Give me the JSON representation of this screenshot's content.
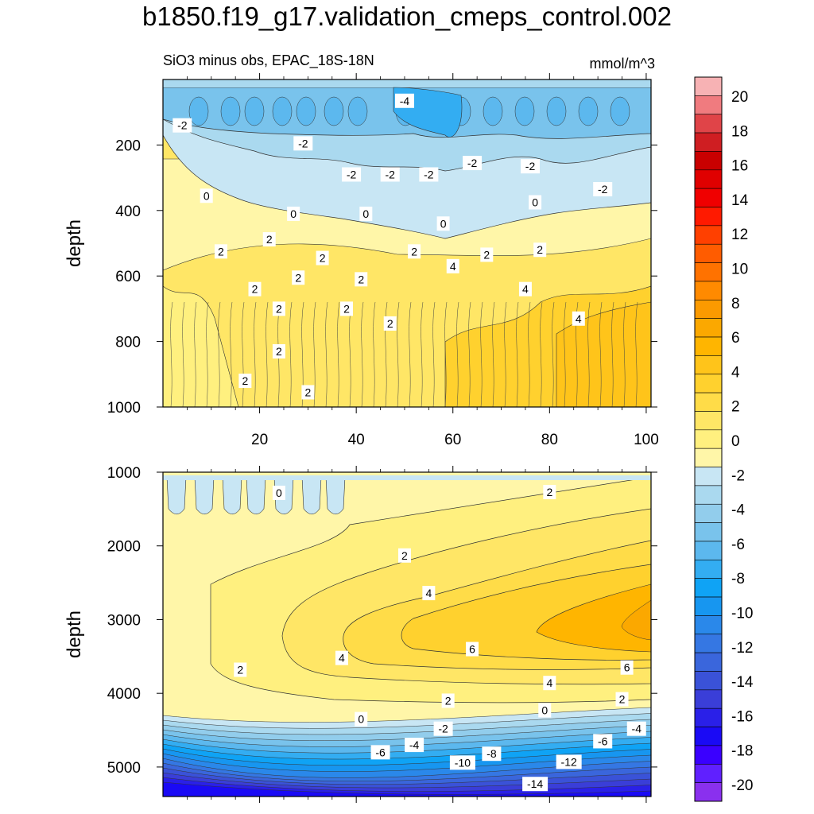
{
  "title": "b1850.f19_g17.validation_cmeps_control.002",
  "subtitle_left": "SiO3 minus obs, EPAC_18S-18N",
  "subtitle_right": "mmol/m^3",
  "chart_data": [
    {
      "type": "heatmap",
      "panel": "upper",
      "ylabel": "depth",
      "xlabel": "",
      "xlim": [
        0,
        101
      ],
      "ylim": [
        1000,
        0
      ],
      "x_ticks": [
        20,
        40,
        60,
        80,
        100
      ],
      "y_ticks": [
        200,
        400,
        600,
        800,
        1000
      ],
      "contour_labels": [
        {
          "x": 50,
          "y": 65,
          "text": "-4"
        },
        {
          "x": 4,
          "y": 140,
          "text": "-2"
        },
        {
          "x": 29,
          "y": 195,
          "text": "-2"
        },
        {
          "x": 39,
          "y": 290,
          "text": "-2"
        },
        {
          "x": 47,
          "y": 290,
          "text": "-2"
        },
        {
          "x": 55,
          "y": 290,
          "text": "-2"
        },
        {
          "x": 64,
          "y": 255,
          "text": "-2"
        },
        {
          "x": 76,
          "y": 265,
          "text": "-2"
        },
        {
          "x": 91,
          "y": 335,
          "text": "-2"
        },
        {
          "x": 9,
          "y": 355,
          "text": "0"
        },
        {
          "x": 27,
          "y": 410,
          "text": "0"
        },
        {
          "x": 42,
          "y": 410,
          "text": "0"
        },
        {
          "x": 58,
          "y": 440,
          "text": "0"
        },
        {
          "x": 77,
          "y": 375,
          "text": "0"
        },
        {
          "x": 22,
          "y": 488,
          "text": "2"
        },
        {
          "x": 12,
          "y": 525,
          "text": "2"
        },
        {
          "x": 33,
          "y": 545,
          "text": "2"
        },
        {
          "x": 52,
          "y": 525,
          "text": "2"
        },
        {
          "x": 67,
          "y": 535,
          "text": "2"
        },
        {
          "x": 78,
          "y": 520,
          "text": "2"
        },
        {
          "x": 28,
          "y": 605,
          "text": "2"
        },
        {
          "x": 41,
          "y": 610,
          "text": "2"
        },
        {
          "x": 19,
          "y": 640,
          "text": "2"
        },
        {
          "x": 60,
          "y": 570,
          "text": "4"
        },
        {
          "x": 75,
          "y": 640,
          "text": "4"
        },
        {
          "x": 24,
          "y": 700,
          "text": "2"
        },
        {
          "x": 38,
          "y": 700,
          "text": "2"
        },
        {
          "x": 47,
          "y": 745,
          "text": "2"
        },
        {
          "x": 86,
          "y": 730,
          "text": "4"
        },
        {
          "x": 24,
          "y": 830,
          "text": "2"
        },
        {
          "x": 17,
          "y": 920,
          "text": "2"
        },
        {
          "x": 30,
          "y": 955,
          "text": "2"
        }
      ]
    },
    {
      "type": "heatmap",
      "panel": "lower",
      "ylabel": "depth",
      "xlabel": "",
      "xlim": [
        0,
        101
      ],
      "ylim": [
        5400,
        1000
      ],
      "x_ticks": [
        20,
        40,
        60,
        80,
        100
      ],
      "y_ticks": [
        1000,
        2000,
        3000,
        4000,
        5000
      ],
      "contour_labels": [
        {
          "x": 24,
          "y": 1280,
          "text": "0"
        },
        {
          "x": 80,
          "y": 1270,
          "text": "2"
        },
        {
          "x": 50,
          "y": 2130,
          "text": "2"
        },
        {
          "x": 55,
          "y": 2640,
          "text": "4"
        },
        {
          "x": 16,
          "y": 3680,
          "text": "2"
        },
        {
          "x": 37,
          "y": 3520,
          "text": "4"
        },
        {
          "x": 64,
          "y": 3400,
          "text": "6"
        },
        {
          "x": 96,
          "y": 3650,
          "text": "6"
        },
        {
          "x": 80,
          "y": 3860,
          "text": "4"
        },
        {
          "x": 59,
          "y": 4100,
          "text": "2"
        },
        {
          "x": 95,
          "y": 4080,
          "text": "2"
        },
        {
          "x": 79,
          "y": 4230,
          "text": "0"
        },
        {
          "x": 41,
          "y": 4350,
          "text": "0"
        },
        {
          "x": 58,
          "y": 4480,
          "text": "-2"
        },
        {
          "x": 98,
          "y": 4480,
          "text": "-4"
        },
        {
          "x": 52,
          "y": 4700,
          "text": "-4"
        },
        {
          "x": 45,
          "y": 4800,
          "text": "-6"
        },
        {
          "x": 91,
          "y": 4650,
          "text": "-6"
        },
        {
          "x": 68,
          "y": 4820,
          "text": "-8"
        },
        {
          "x": 62,
          "y": 4940,
          "text": "-10"
        },
        {
          "x": 84,
          "y": 4930,
          "text": "-12"
        },
        {
          "x": 77,
          "y": 5230,
          "text": "-14"
        }
      ]
    }
  ],
  "colorbar": {
    "levels": [
      20,
      18,
      16,
      14,
      12,
      10,
      8,
      6,
      4,
      2,
      0,
      -2,
      -4,
      -6,
      -8,
      -10,
      -12,
      -14,
      -16,
      -18,
      -20
    ],
    "colors": [
      "#f7b2b4",
      "#f07b7f",
      "#e04448",
      "#cf1e22",
      "#c90000",
      "#e00000",
      "#f00000",
      "#ff1a00",
      "#ff4000",
      "#ff5c00",
      "#ff7200",
      "#ff8a00",
      "#fb9a00",
      "#fba800",
      "#ffb500",
      "#ffc41a",
      "#ffd12e",
      "#ffdc48",
      "#ffe666",
      "#fff07f",
      "#fff6a8",
      "#c8e6f4",
      "#aad9ef",
      "#92cdec",
      "#79c3ec",
      "#5cb8ee",
      "#33adf2",
      "#0fa3f5",
      "#1796f0",
      "#2a88ea",
      "#3577e3",
      "#3a66dc",
      "#3a52d8",
      "#3a3ed8",
      "#2a20e8",
      "#1a0af5",
      "#3a00ff",
      "#6020ff",
      "#8a30ee"
    ]
  }
}
